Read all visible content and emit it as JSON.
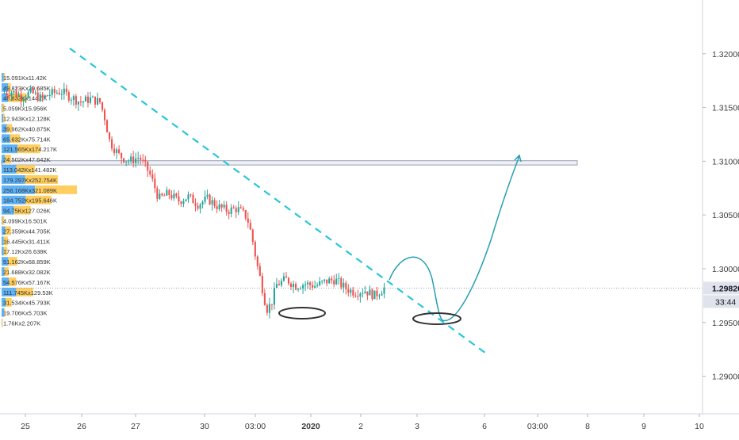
{
  "colors": {
    "up": "#26a69a",
    "down": "#ef5350",
    "trendline": "#26c6da",
    "projection": "#26a0b0",
    "ellipse": "#333333",
    "zone_fill": "#eef0f5",
    "zone_stroke": "#9aa0b4",
    "vp_buy": "#42a5f5",
    "vp_sell": "#ffc94d",
    "axis_text": "#3d3d3d",
    "price_label_bg": "#e0e3eb"
  },
  "chart_data": {
    "type": "candlestick",
    "ylim": [
      1.2865,
      1.325
    ],
    "y_ticks": [
      {
        "value": 1.32,
        "label": "1.32000"
      },
      {
        "value": 1.315,
        "label": "1.31500"
      },
      {
        "value": 1.31,
        "label": "1.31000"
      },
      {
        "value": 1.305,
        "label": "1.30500"
      },
      {
        "value": 1.3,
        "label": "1.30000"
      },
      {
        "value": 1.295,
        "label": "1.29500"
      },
      {
        "value": 1.29,
        "label": "1.29000"
      }
    ],
    "x_ticks": [
      {
        "label": "25",
        "bold": false
      },
      {
        "label": "26",
        "bold": false
      },
      {
        "label": "27",
        "bold": false
      },
      {
        "label": "30",
        "bold": false
      },
      {
        "label": "03:00",
        "bold": false
      },
      {
        "label": "2020",
        "bold": true
      },
      {
        "label": "2",
        "bold": false
      },
      {
        "label": "3",
        "bold": false
      },
      {
        "label": "6",
        "bold": false
      },
      {
        "label": "03:00",
        "bold": false
      },
      {
        "label": "8",
        "bold": false
      },
      {
        "label": "9",
        "bold": false
      },
      {
        "label": "10",
        "bold": false
      }
    ],
    "current_price": {
      "value": 1.2982,
      "label": "1.29820",
      "countdown": "33:44"
    },
    "resistance_zone": {
      "low": 1.30965,
      "high": 1.31005
    },
    "volume_profile": [
      {
        "label": "15.091Kx11.42K",
        "buy": 15.091,
        "sell": 11.42
      },
      {
        "label": "49.823Kx20.685K",
        "buy": 49.823,
        "sell": 20.685
      },
      {
        "label": "48.832Kx144.6K",
        "buy": 48.832,
        "sell": 144.6
      },
      {
        "label": "5.059Kx15.956K",
        "buy": 5.059,
        "sell": 15.956
      },
      {
        "label": "12.943Kx12.128K",
        "buy": 12.943,
        "sell": 12.128
      },
      {
        "label": "39.962Kx40.875K",
        "buy": 39.962,
        "sell": 40.875
      },
      {
        "label": "65.632Kx75.714K",
        "buy": 65.632,
        "sell": 75.714
      },
      {
        "label": "121.565Kx174.217K",
        "buy": 121.565,
        "sell": 174.217
      },
      {
        "label": "24.502Kx47.642K",
        "buy": 24.502,
        "sell": 47.642
      },
      {
        "label": "113.042Kx141.482K",
        "buy": 113.042,
        "sell": 141.482
      },
      {
        "label": "179.297Kx252.754K",
        "buy": 179.297,
        "sell": 252.754
      },
      {
        "label": "256.168Kx321.089K",
        "buy": 256.168,
        "sell": 321.089
      },
      {
        "label": "184.752Kx195.646K",
        "buy": 184.752,
        "sell": 195.646
      },
      {
        "label": "94.75Kx127.026K",
        "buy": 94.75,
        "sell": 127.026
      },
      {
        "label": "4.099Kx16.501K",
        "buy": 4.099,
        "sell": 16.501
      },
      {
        "label": "27.359Kx44.705K",
        "buy": 27.359,
        "sell": 44.705
      },
      {
        "label": "16.445Kx31.411K",
        "buy": 16.445,
        "sell": 31.411
      },
      {
        "label": "17.12Kx26.638K",
        "buy": 17.12,
        "sell": 26.638
      },
      {
        "label": "51.162Kx68.859K",
        "buy": 51.162,
        "sell": 68.859
      },
      {
        "label": "21.688Kx32.082K",
        "buy": 21.688,
        "sell": 32.082
      },
      {
        "label": "54.576Kx57.167K",
        "buy": 54.576,
        "sell": 57.167
      },
      {
        "label": "111.745Kx129.53K",
        "buy": 111.745,
        "sell": 129.53
      },
      {
        "label": "31.534Kx45.793K",
        "buy": 31.534,
        "sell": 45.793
      },
      {
        "label": "19.706Kx5.703K",
        "buy": 19.706,
        "sell": 5.703
      },
      {
        "label": "1.76Kx2.207K",
        "buy": 1.76,
        "sell": 2.207
      }
    ],
    "price_path": [
      {
        "t": 0.0,
        "p": 1.3163
      },
      {
        "t": 0.02,
        "p": 1.3165
      },
      {
        "t": 0.04,
        "p": 1.316
      },
      {
        "t": 0.06,
        "p": 1.3164
      },
      {
        "t": 0.08,
        "p": 1.3158
      },
      {
        "t": 0.1,
        "p": 1.3163
      },
      {
        "t": 0.12,
        "p": 1.3165
      },
      {
        "t": 0.14,
        "p": 1.316
      },
      {
        "t": 0.16,
        "p": 1.3155
      },
      {
        "t": 0.18,
        "p": 1.3158
      },
      {
        "t": 0.2,
        "p": 1.3155
      },
      {
        "t": 0.21,
        "p": 1.314
      },
      {
        "t": 0.22,
        "p": 1.3118
      },
      {
        "t": 0.24,
        "p": 1.3105
      },
      {
        "t": 0.26,
        "p": 1.31
      },
      {
        "t": 0.28,
        "p": 1.3104
      },
      {
        "t": 0.3,
        "p": 1.309
      },
      {
        "t": 0.31,
        "p": 1.3078
      },
      {
        "t": 0.32,
        "p": 1.3065
      },
      {
        "t": 0.34,
        "p": 1.307
      },
      {
        "t": 0.36,
        "p": 1.3063
      },
      {
        "t": 0.38,
        "p": 1.3067
      },
      {
        "t": 0.4,
        "p": 1.306
      },
      {
        "t": 0.42,
        "p": 1.3065
      },
      {
        "t": 0.44,
        "p": 1.3058
      },
      {
        "t": 0.46,
        "p": 1.3054
      },
      {
        "t": 0.48,
        "p": 1.3056
      },
      {
        "t": 0.5,
        "p": 1.3048
      },
      {
        "t": 0.51,
        "p": 1.303
      },
      {
        "t": 0.52,
        "p": 1.3005
      },
      {
        "t": 0.53,
        "p": 1.2985
      },
      {
        "t": 0.54,
        "p": 1.2962
      },
      {
        "t": 0.55,
        "p": 1.2968
      },
      {
        "t": 0.56,
        "p": 1.2985
      },
      {
        "t": 0.58,
        "p": 1.299
      },
      {
        "t": 0.6,
        "p": 1.2984
      },
      {
        "t": 0.62,
        "p": 1.2986
      },
      {
        "t": 0.64,
        "p": 1.2984
      },
      {
        "t": 0.66,
        "p": 1.2988
      },
      {
        "t": 0.68,
        "p": 1.299
      },
      {
        "t": 0.7,
        "p": 1.2982
      },
      {
        "t": 0.72,
        "p": 1.2978
      },
      {
        "t": 0.74,
        "p": 1.298
      },
      {
        "t": 0.76,
        "p": 1.2975
      },
      {
        "t": 0.78,
        "p": 1.2982
      }
    ]
  }
}
